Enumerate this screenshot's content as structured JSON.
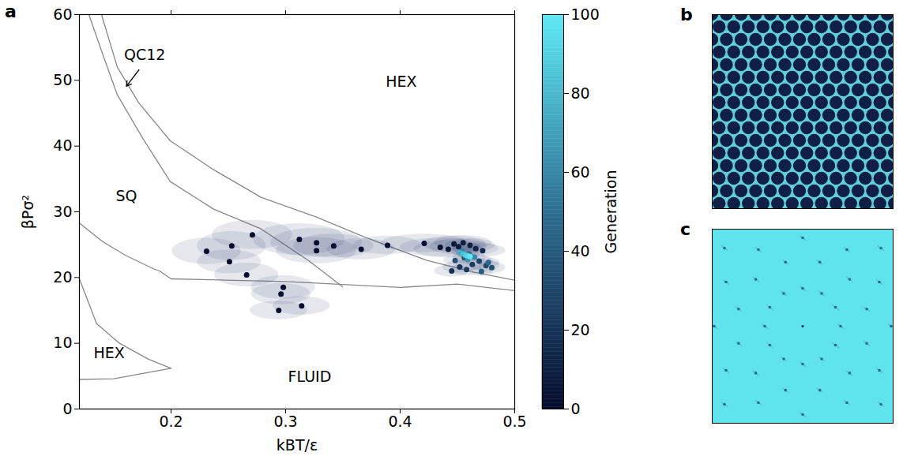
{
  "chart_data": [
    {
      "type": "scatter",
      "panel_label": "a",
      "xlabel": "kBT/ε",
      "ylabel": "βPσ²",
      "xlim": [
        0.12,
        0.5
      ],
      "xticks": [
        0.2,
        0.3,
        0.4,
        0.5
      ],
      "ylim": [
        0,
        60
      ],
      "yticks": [
        0,
        10,
        20,
        30,
        40,
        50,
        60
      ],
      "lines": [
        {
          "color": "#888888",
          "x": [
            0.1393,
            0.1531,
            0.1717,
            0.1993,
            0.2372,
            0.2786,
            0.3269,
            0.3683,
            0.4234,
            0.4648,
            0.5
          ],
          "y": [
            60,
            52.0,
            46.6,
            40.8,
            36.4,
            32.2,
            29.2,
            26.2,
            22.6,
            20.8,
            19.6
          ]
        },
        {
          "color": "#888888",
          "x": [
            0.1283,
            0.1407,
            0.1531,
            0.1752,
            0.1993,
            0.2372,
            0.2786,
            0.32,
            0.3497
          ],
          "y": [
            60,
            53.8,
            47.8,
            41.2,
            34.6,
            30.4,
            27.4,
            22.6,
            18.6
          ]
        },
        {
          "color": "#888888",
          "x": [
            0.12,
            0.14,
            0.16,
            0.185,
            0.19,
            0.2,
            0.3,
            0.4,
            0.45,
            0.5
          ],
          "y": [
            28.3,
            25.5,
            23.4,
            21.3,
            21.0,
            19.8,
            19.4,
            18.5,
            19.0,
            18.0
          ]
        },
        {
          "color": "#888888",
          "x": [
            0.12,
            0.135,
            0.155,
            0.18,
            0.2,
            0.15,
            0.12
          ],
          "y": [
            19.8,
            13,
            10,
            7.6,
            6.2,
            4.6,
            4.5
          ]
        }
      ],
      "points": {
        "x": [
          0.231,
          0.253,
          0.251,
          0.271,
          0.266,
          0.298,
          0.296,
          0.294,
          0.314,
          0.312,
          0.327,
          0.327,
          0.342,
          0.366,
          0.389,
          0.421,
          0.435,
          0.442,
          0.447,
          0.451,
          0.455,
          0.461,
          0.466,
          0.472,
          0.445,
          0.452,
          0.458,
          0.463,
          0.469,
          0.475,
          0.48,
          0.448,
          0.456,
          0.471,
          0.477,
          0.46,
          0.454,
          0.465,
          0.459,
          0.452,
          0.455,
          0.457,
          0.459,
          0.461
        ],
        "y": [
          24.0,
          24.8,
          22.4,
          26.5,
          20.4,
          18.5,
          17.5,
          15.0,
          15.7,
          25.8,
          25.3,
          24.1,
          24.8,
          24.3,
          24.9,
          25.2,
          24.6,
          24.3,
          25.1,
          24.7,
          25.3,
          24.9,
          24.4,
          24.1,
          21.0,
          21.6,
          21.2,
          22.0,
          22.5,
          21.8,
          21.5,
          22.6,
          23.0,
          20.9,
          22.3,
          23.6,
          24.0,
          23.1,
          22.7,
          23.8,
          23.6,
          23.4,
          23.3,
          23.2
        ],
        "generation": [
          0,
          0,
          0,
          0,
          0,
          0,
          0,
          0,
          0,
          0,
          0,
          0,
          0,
          0,
          0,
          0,
          3,
          5,
          6,
          8,
          9,
          10,
          12,
          14,
          18,
          20,
          22,
          25,
          28,
          30,
          32,
          35,
          38,
          40,
          45,
          50,
          55,
          60,
          65,
          75,
          82,
          88,
          94,
          100
        ],
        "x_spread": [
          0.03,
          0.03,
          0.028,
          0.035,
          0.028,
          0.028,
          0.026,
          0.025,
          0.025,
          0.04,
          0.04,
          0.035,
          0.035,
          0.03,
          0.03,
          0.038,
          0.035,
          0.03,
          0.028,
          0.025,
          0.025,
          0.022,
          0.02,
          0.02,
          0.015,
          0.015,
          0.014,
          0.014,
          0.012,
          0.012,
          0.012,
          0.01,
          0.01,
          0.01,
          0.01,
          0.01,
          0.01,
          0.01,
          0.01,
          0.006,
          0.006,
          0.006,
          0.006,
          0.006
        ],
        "y_spread": [
          2.0,
          2.2,
          1.8,
          2.2,
          1.8,
          1.8,
          1.6,
          1.4,
          1.4,
          2.4,
          2.2,
          2.0,
          1.8,
          1.6,
          1.4,
          1.4,
          1.4,
          1.3,
          1.2,
          1.2,
          1.1,
          1.0,
          1.0,
          1.0,
          0.9,
          0.9,
          0.9,
          0.9,
          0.9,
          0.9,
          0.9,
          0.7,
          0.7,
          0.7,
          0.7,
          0.7,
          0.7,
          0.7,
          0.7,
          0.4,
          0.4,
          0.4,
          0.4,
          0.4
        ]
      },
      "annotations": [
        {
          "text": "QC12",
          "x": 0.177,
          "y": 53.8,
          "arrow": [
            0.172,
            51.6,
            0.161,
            49.1
          ]
        },
        {
          "text": "HEX",
          "x": 0.401,
          "y": 49.7
        },
        {
          "text": "SQ",
          "x": 0.161,
          "y": 32.4
        },
        {
          "text": "HEX",
          "x": 0.146,
          "y": 8.5
        },
        {
          "text": "FLUID",
          "x": 0.321,
          "y": 4.9
        }
      ],
      "colorbar": {
        "label": "Generation",
        "lim": [
          0,
          100
        ],
        "ticks": [
          0,
          20,
          40,
          60,
          80,
          100
        ],
        "colors": [
          "#060d2e",
          "#2f6f93",
          "#5ee9f5"
        ]
      }
    },
    {
      "type": "image",
      "panel_label": "b"
    },
    {
      "type": "image",
      "panel_label": "c"
    }
  ]
}
